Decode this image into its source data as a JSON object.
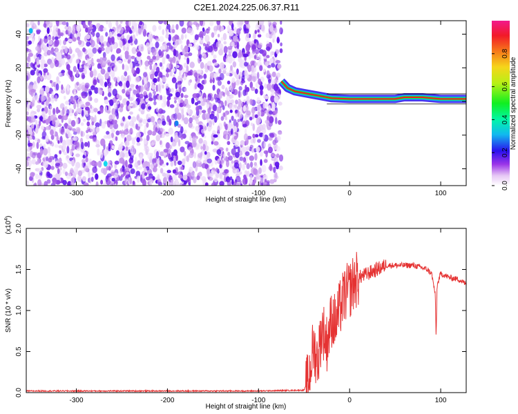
{
  "figure": {
    "title": "C2E1.2024.225.06.37.R11"
  },
  "colors": {
    "background": "#ffffff",
    "snr_line": "#e53232",
    "axis": "#000000"
  },
  "chart_data": [
    {
      "type": "heatmap",
      "xlabel": "Height of straight line (km)",
      "ylabel": "Frequency (Hz)",
      "xlim": [
        -355,
        128
      ],
      "ylim": [
        -50,
        48
      ],
      "xticks": [
        -300,
        -200,
        -100,
        0,
        100
      ],
      "xtick_labels": [
        "-300",
        "-200",
        "-100",
        "0",
        "100"
      ],
      "yticks": [
        -40,
        -20,
        0,
        20,
        40
      ],
      "ytick_labels": [
        "-40",
        "-20",
        "0",
        "20",
        "40"
      ],
      "noise_region": {
        "x_start": -355,
        "x_end": -75
      },
      "carrier_track": [
        {
          "x": -75,
          "y": 12
        },
        {
          "x": -68,
          "y": 8
        },
        {
          "x": -60,
          "y": 6
        },
        {
          "x": -50,
          "y": 5
        },
        {
          "x": -40,
          "y": 4
        },
        {
          "x": -30,
          "y": 3
        },
        {
          "x": -20,
          "y": 2
        },
        {
          "x": 0,
          "y": 1.5
        },
        {
          "x": 50,
          "y": 1.5
        },
        {
          "x": 60,
          "y": 2.5
        },
        {
          "x": 80,
          "y": 2.5
        },
        {
          "x": 100,
          "y": 1.5
        },
        {
          "x": 128,
          "y": 1.5
        }
      ],
      "colorbar": {
        "label": "Normalized spectral amplitude",
        "range": [
          0,
          1
        ],
        "ticks": [
          0.0,
          0.2,
          0.4,
          0.6,
          0.8
        ],
        "tick_labels": [
          "0.0",
          "0.2",
          "0.4",
          "0.6",
          "0.8"
        ]
      },
      "grid": false
    },
    {
      "type": "line",
      "xlabel": "Height of straight line (km)",
      "ylabel": "SNR (10 * v/v)",
      "y_multiplier": "(x10",
      "y_multiplier_exp": "4",
      "y_multiplier_close": ")",
      "xlim": [
        -355,
        128
      ],
      "ylim": [
        0,
        2.0
      ],
      "xticks": [
        -300,
        -200,
        -100,
        0,
        100
      ],
      "xtick_labels": [
        "-300",
        "-200",
        "-100",
        "0",
        "100"
      ],
      "yticks": [
        0.0,
        0.5,
        1.0,
        1.5,
        2.0
      ],
      "ytick_labels": [
        "0.0",
        "0.5",
        "1.0",
        "1.5",
        "2.0"
      ],
      "series": [
        {
          "x": [
            -355,
            -300,
            -200,
            -100,
            -50,
            -45,
            -40,
            -35,
            -30,
            -25,
            -20,
            -15,
            -10,
            -5,
            0,
            5,
            10,
            20,
            30,
            40,
            50,
            60,
            70,
            80,
            85,
            90,
            94,
            95,
            96,
            100,
            110,
            120,
            128
          ],
          "y": [
            0.02,
            0.02,
            0.02,
            0.02,
            0.03,
            0.15,
            0.55,
            0.4,
            0.8,
            0.6,
            0.9,
            0.85,
            1.05,
            1.2,
            1.25,
            1.35,
            1.4,
            1.45,
            1.5,
            1.55,
            1.55,
            1.55,
            1.55,
            1.52,
            1.5,
            1.45,
            1.2,
            0.65,
            1.3,
            1.45,
            1.4,
            1.38,
            1.32
          ]
        }
      ],
      "grid": false
    }
  ]
}
